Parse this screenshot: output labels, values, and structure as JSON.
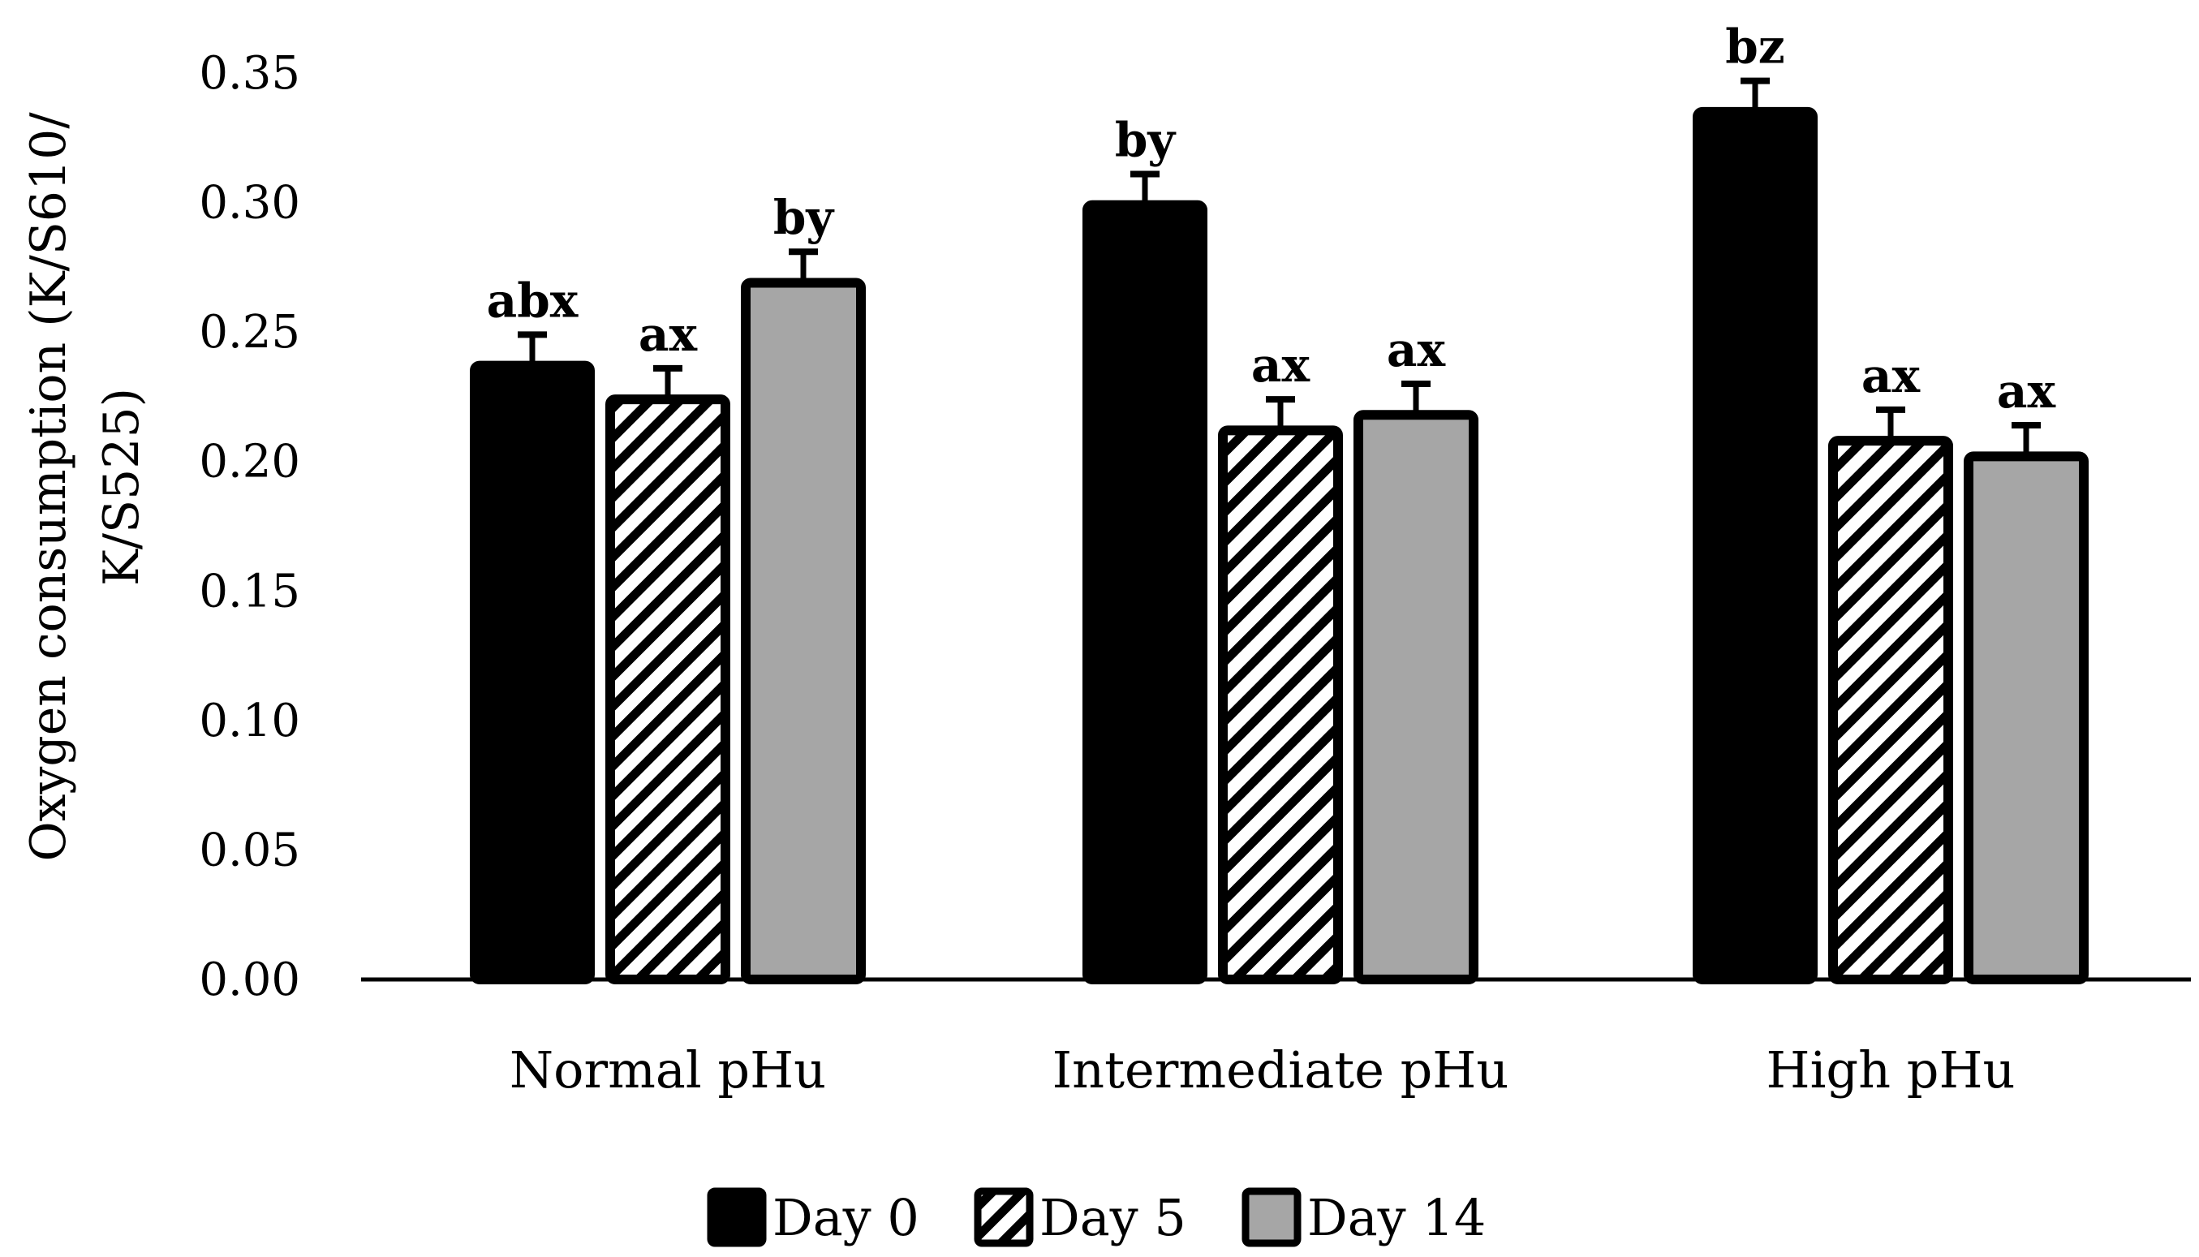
{
  "chart_data": {
    "type": "bar",
    "title": "",
    "xlabel": "",
    "ylabel_line1": "Oxygen consumption (K/S610/",
    "ylabel_line2": "K/S525)",
    "ylim": [
      0,
      0.35
    ],
    "yticks": [
      "0.00",
      "0.05",
      "0.10",
      "0.15",
      "0.20",
      "0.25",
      "0.30",
      "0.35"
    ],
    "categories": [
      "Normal pHu",
      "Intermediate pHu",
      "High pHu"
    ],
    "series": [
      {
        "name": "Day 0",
        "fill": "#000000",
        "pattern": "solid",
        "values": [
          0.237,
          0.299,
          0.335
        ],
        "errors": [
          0.012,
          0.012,
          0.012
        ],
        "labels": [
          "abx",
          "by",
          "bz"
        ]
      },
      {
        "name": "Day 5",
        "fill": "#ffffff",
        "pattern": "diagonal-stripes",
        "values": [
          0.224,
          0.212,
          0.208
        ],
        "errors": [
          0.012,
          0.012,
          0.012
        ],
        "labels": [
          "ax",
          "ax",
          "ax"
        ]
      },
      {
        "name": "Day 14",
        "fill": "#a6a6a6",
        "pattern": "solid",
        "values": [
          0.269,
          0.218,
          0.202
        ],
        "errors": [
          0.012,
          0.012,
          0.012
        ],
        "labels": [
          "by",
          "ax",
          "ax"
        ]
      }
    ],
    "legend_position": "bottom",
    "grid": false
  }
}
